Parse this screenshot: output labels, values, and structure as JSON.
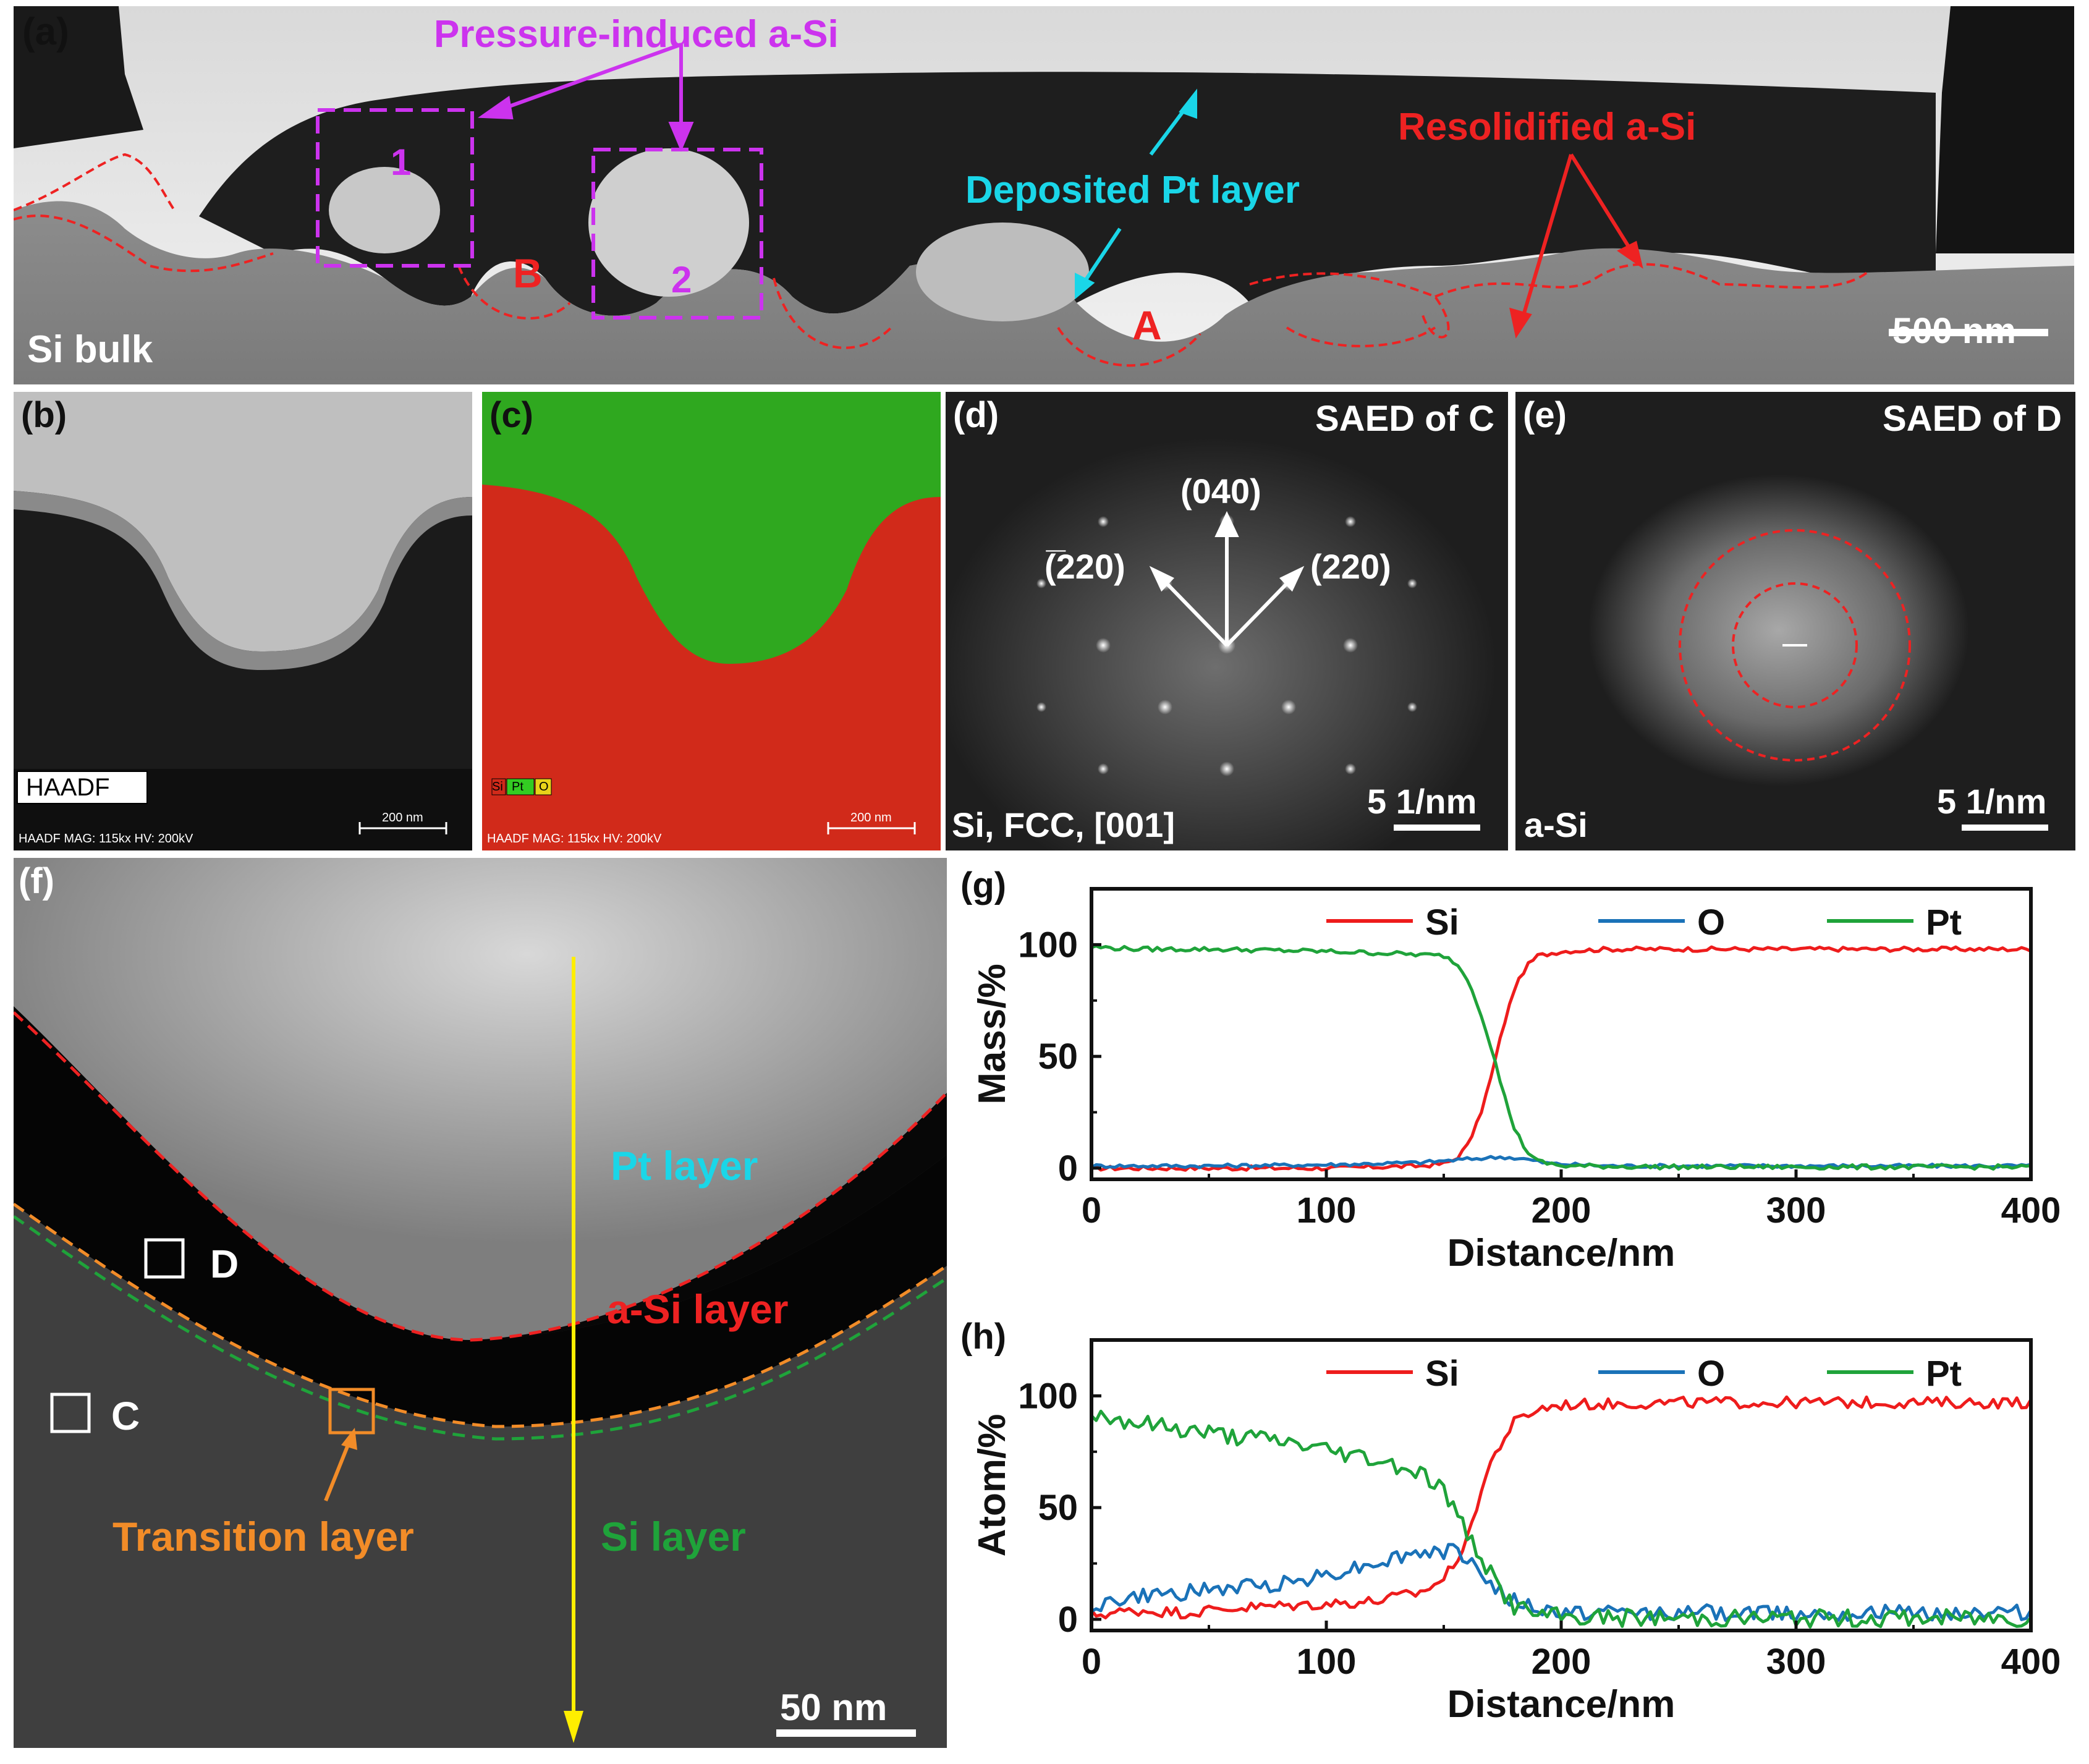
{
  "panels": {
    "a": {
      "label": "(a)",
      "bulk": "Si bulk",
      "pressure_title": "Pressure-induced a-Si",
      "box1": "1",
      "box2": "2",
      "pt_layer": "Deposited Pt layer",
      "resolidified": "Resolidified a-Si",
      "markA": "A",
      "markB": "B",
      "scale": "500 nm"
    },
    "b": {
      "label": "(b)",
      "badge": "HAADF",
      "info": "HAADF  MAG: 115kx  HV: 200kV",
      "scale": "200 nm"
    },
    "c": {
      "label": "(c)",
      "legend_si": "Si",
      "legend_pt": "Pt",
      "legend_o": "O",
      "info": "HAADF  MAG: 115kx  HV: 200kV",
      "scale": "200 nm"
    },
    "d": {
      "label": "(d)",
      "title": "SAED of C",
      "spot_040": "(040)",
      "spot_220": "(220)",
      "spot_m220": "(̅220)",
      "bottom": "Si, FCC, [001]",
      "scale": "5 1/nm"
    },
    "e": {
      "label": "(e)",
      "title": "SAED of D",
      "bottom": "a-Si",
      "scale": "5 1/nm"
    },
    "f": {
      "label": "(f)",
      "pt": "Pt layer",
      "asi": "a-Si layer",
      "si": "Si layer",
      "transition": "Transition layer",
      "boxC": "C",
      "boxD": "D",
      "scale": "50 nm"
    }
  },
  "colors": {
    "si": "#ee1c1c",
    "o": "#1a72b8",
    "pt": "#1fa33a",
    "cyan": "#1ad6e8",
    "magenta": "#cc33ee",
    "orange": "#f28c28",
    "yellow": "#ffee00"
  },
  "chart_data": [
    {
      "id": "g",
      "label": "(g)",
      "type": "line",
      "xlabel": "Distance/nm",
      "ylabel": "Mass/%",
      "xlim": [
        0,
        400
      ],
      "ylim": [
        -5,
        125
      ],
      "xticks": [
        0,
        100,
        200,
        300,
        400
      ],
      "yticks": [
        0,
        50,
        100
      ],
      "legend": [
        "Si",
        "O",
        "Pt"
      ],
      "series": [
        {
          "name": "Si",
          "color": "#ee1c1c",
          "x": [
            0,
            20,
            40,
            60,
            80,
            100,
            120,
            140,
            150,
            155,
            160,
            165,
            170,
            175,
            180,
            185,
            190,
            200,
            220,
            250,
            300,
            350,
            400
          ],
          "y": [
            0,
            0,
            0,
            0,
            0,
            0,
            0.5,
            1,
            2,
            4,
            10,
            22,
            40,
            62,
            80,
            90,
            95,
            97,
            98,
            98,
            98,
            98,
            98
          ]
        },
        {
          "name": "O",
          "color": "#1a72b8",
          "x": [
            0,
            50,
            100,
            140,
            160,
            175,
            185,
            195,
            220,
            300,
            400
          ],
          "y": [
            1,
            1,
            1.5,
            2.5,
            4,
            5,
            4,
            2,
            1,
            1,
            1
          ]
        },
        {
          "name": "Pt",
          "color": "#1fa33a",
          "x": [
            0,
            20,
            50,
            100,
            130,
            150,
            155,
            160,
            165,
            170,
            175,
            180,
            185,
            190,
            200,
            250,
            300,
            350,
            400
          ],
          "y": [
            99,
            98,
            98,
            97,
            96,
            95,
            92,
            85,
            72,
            55,
            35,
            18,
            8,
            3,
            1,
            0.5,
            0.5,
            0.5,
            0.5
          ]
        }
      ]
    },
    {
      "id": "h",
      "label": "(h)",
      "type": "line",
      "xlabel": "Distance/nm",
      "ylabel": "Atom/%",
      "xlim": [
        0,
        400
      ],
      "ylim": [
        -5,
        125
      ],
      "xticks": [
        0,
        100,
        200,
        300,
        400
      ],
      "yticks": [
        0,
        50,
        100
      ],
      "legend": [
        "Si",
        "O",
        "Pt"
      ],
      "series": [
        {
          "name": "Si",
          "color": "#ee1c1c",
          "x": [
            0,
            20,
            40,
            60,
            80,
            100,
            120,
            140,
            150,
            160,
            165,
            170,
            175,
            180,
            190,
            200,
            250,
            300,
            350,
            400
          ],
          "y": [
            2,
            4,
            3,
            5,
            6,
            7,
            8,
            12,
            18,
            35,
            55,
            70,
            80,
            88,
            94,
            96,
            97,
            97,
            97,
            97
          ]
        },
        {
          "name": "O",
          "color": "#1a72b8",
          "x": [
            0,
            20,
            40,
            60,
            80,
            100,
            120,
            140,
            155,
            160,
            165,
            170,
            180,
            190,
            200,
            250,
            300,
            350,
            400
          ],
          "y": [
            6,
            10,
            12,
            14,
            16,
            20,
            25,
            30,
            30,
            28,
            22,
            15,
            8,
            4,
            3,
            3,
            3,
            3,
            3
          ]
        },
        {
          "name": "Pt",
          "color": "#1fa33a",
          "x": [
            0,
            20,
            40,
            60,
            80,
            100,
            120,
            140,
            150,
            155,
            160,
            165,
            170,
            175,
            180,
            190,
            200,
            250,
            300,
            350,
            400
          ],
          "y": [
            92,
            88,
            85,
            82,
            80,
            76,
            72,
            66,
            58,
            48,
            38,
            30,
            20,
            12,
            6,
            2,
            1,
            0.5,
            0.5,
            0.5,
            0.5
          ]
        }
      ]
    }
  ]
}
